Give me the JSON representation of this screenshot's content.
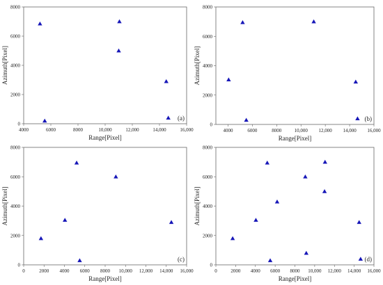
{
  "chart_data": [
    {
      "type": "scatter",
      "panel_label": "(a)",
      "xlabel": "Range[Pixel]",
      "ylabel": "Azimuth[Pixel]",
      "xlim": [
        4000,
        16000
      ],
      "ylim": [
        0,
        8000
      ],
      "xticks": [
        "4000",
        "6000",
        "8000",
        "10,000",
        "12,000",
        "14,000",
        "16,000"
      ],
      "yticks": [
        "0",
        "2000",
        "4000",
        "6000",
        "8000"
      ],
      "points": [
        {
          "x": 5200,
          "y": 6850
        },
        {
          "x": 5550,
          "y": 200
        },
        {
          "x": 11050,
          "y": 7000
        },
        {
          "x": 11000,
          "y": 5000
        },
        {
          "x": 14500,
          "y": 2900
        },
        {
          "x": 14650,
          "y": 400
        }
      ]
    },
    {
      "type": "scatter",
      "panel_label": "(b)",
      "xlabel": "Range[Pixel]",
      "ylabel": "Azimuth[Pixel]",
      "xlim": [
        3000,
        16000
      ],
      "ylim": [
        0,
        8000
      ],
      "xticks": [
        "4000",
        "6000",
        "8000",
        "10,000",
        "12,000",
        "14,000",
        "16,000"
      ],
      "yticks": [
        "0",
        "2000",
        "4000",
        "6000",
        "8000"
      ],
      "points": [
        {
          "x": 4050,
          "y": 3050
        },
        {
          "x": 5200,
          "y": 6950
        },
        {
          "x": 5500,
          "y": 300
        },
        {
          "x": 11050,
          "y": 7000
        },
        {
          "x": 14500,
          "y": 2900
        },
        {
          "x": 14650,
          "y": 400
        }
      ]
    },
    {
      "type": "scatter",
      "panel_label": "(c)",
      "xlabel": "Range[Pixel]",
      "ylabel": "Azimuth[Pixel]",
      "xlim": [
        0,
        16000
      ],
      "ylim": [
        0,
        8000
      ],
      "xticks": [
        "0",
        "2000",
        "4000",
        "6000",
        "8000",
        "10,000",
        "12,000",
        "14,000",
        "16,000"
      ],
      "yticks": [
        "0",
        "2000",
        "4000",
        "6000",
        "8000"
      ],
      "points": [
        {
          "x": 1700,
          "y": 1800
        },
        {
          "x": 4050,
          "y": 3050
        },
        {
          "x": 5200,
          "y": 6950
        },
        {
          "x": 5500,
          "y": 300
        },
        {
          "x": 9050,
          "y": 6000
        },
        {
          "x": 14500,
          "y": 2900
        }
      ]
    },
    {
      "type": "scatter",
      "panel_label": "(d)",
      "xlabel": "Range[Pixel]",
      "ylabel": "Azimuth[Pixel]",
      "xlim": [
        0,
        16000
      ],
      "ylim": [
        0,
        8000
      ],
      "xticks": [
        "0",
        "2000",
        "4000",
        "6000",
        "8000",
        "10,000",
        "12,000",
        "14,000",
        "16,000"
      ],
      "yticks": [
        "0",
        "2000",
        "4000",
        "6000",
        "8000"
      ],
      "points": [
        {
          "x": 1700,
          "y": 1800
        },
        {
          "x": 4050,
          "y": 3050
        },
        {
          "x": 5200,
          "y": 6950
        },
        {
          "x": 5500,
          "y": 300
        },
        {
          "x": 6200,
          "y": 4300
        },
        {
          "x": 9050,
          "y": 6000
        },
        {
          "x": 9150,
          "y": 800
        },
        {
          "x": 11050,
          "y": 7000
        },
        {
          "x": 11000,
          "y": 5000
        },
        {
          "x": 14500,
          "y": 2900
        },
        {
          "x": 14650,
          "y": 400
        }
      ]
    }
  ]
}
